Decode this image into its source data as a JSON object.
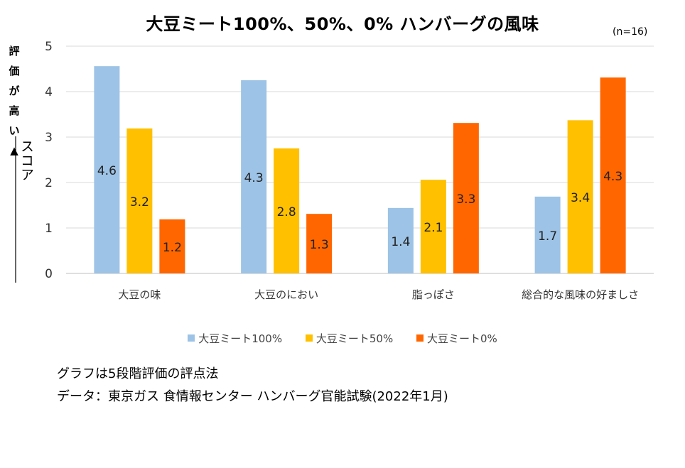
{
  "chart_data": {
    "type": "bar",
    "title": "大豆ミート100%、50%、0% ハンバーグの風味",
    "sample_note": "(n=16)",
    "ylabel_vertical": [
      "評",
      "価",
      "が",
      "高",
      "い"
    ],
    "ylabel_arrow": "▲",
    "ylabel": "スコア",
    "ylim": [
      0,
      5
    ],
    "yticks": [
      0,
      1,
      2,
      3,
      4,
      5
    ],
    "grid": true,
    "categories": [
      "大豆の味",
      "大豆のにおい",
      "脂っぽさ",
      "総合的な風味の好ましさ"
    ],
    "series": [
      {
        "name": "大豆ミート100%",
        "color": "#9DC3E6",
        "values": [
          4.56,
          4.25,
          1.44,
          1.69
        ],
        "labels": [
          "4.6",
          "4.3",
          "1.4",
          "1.7"
        ]
      },
      {
        "name": "大豆ミート50%",
        "color": "#FFC000",
        "values": [
          3.19,
          2.75,
          2.06,
          3.37
        ],
        "labels": [
          "3.2",
          "2.8",
          "2.1",
          "3.4"
        ]
      },
      {
        "name": "大豆ミート0%",
        "color": "#FF6600",
        "values": [
          1.19,
          1.31,
          3.31,
          4.31
        ],
        "labels": [
          "1.2",
          "1.3",
          "3.3",
          "4.3"
        ]
      }
    ],
    "legend_position": "bottom"
  },
  "notes": {
    "method": "グラフは5段階評価の評点法",
    "source": "データ：東京ガス 食情報センター ハンバーグ官能試験(2022年1月)"
  }
}
